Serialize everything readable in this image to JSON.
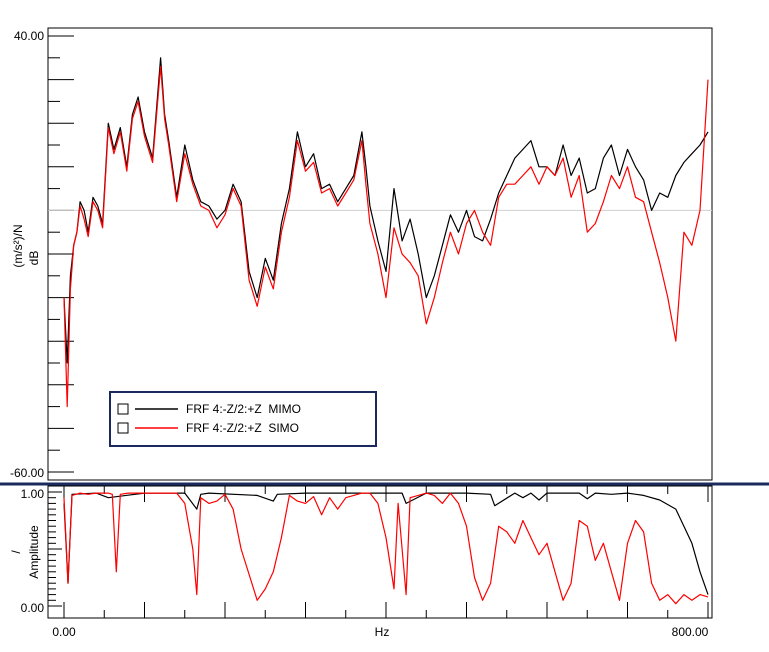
{
  "chart_data": [
    {
      "type": "line",
      "panel": "frf-magnitude",
      "title": "",
      "xlabel": "",
      "ylabel_unit": "(m/s²)/N",
      "ylabel_scale": "dB",
      "xlim": [
        0,
        800
      ],
      "ylim": [
        -60,
        40
      ],
      "y_tick_labels": [
        "40.00",
        "-60.00"
      ],
      "reference_line_y": 0,
      "grid": false,
      "legend_placement": "bottom-left",
      "series": [
        {
          "name": "FRF 4:-Z/2:+Z  MIMO",
          "color": "#000000",
          "x": [
            0,
            4,
            8,
            12,
            16,
            20,
            25,
            30,
            36,
            42,
            48,
            55,
            62,
            70,
            78,
            85,
            92,
            100,
            110,
            120,
            125,
            130,
            140,
            150,
            160,
            170,
            180,
            190,
            200,
            210,
            220,
            230,
            240,
            250,
            260,
            270,
            280,
            290,
            300,
            310,
            320,
            330,
            340,
            350,
            360,
            370,
            375,
            380,
            390,
            400,
            410,
            420,
            430,
            440,
            450,
            460,
            470,
            480,
            490,
            500,
            510,
            520,
            530,
            540,
            550,
            560,
            570,
            580,
            590,
            600,
            610,
            620,
            630,
            640,
            650,
            660,
            670,
            680,
            690,
            700,
            710,
            720,
            730,
            740,
            750,
            760,
            770,
            780,
            790,
            800
          ],
          "y": [
            -20,
            -35,
            -15,
            -8,
            -5,
            2,
            0,
            -5,
            3,
            1,
            -3,
            20,
            14,
            19,
            10,
            22,
            26,
            18,
            12,
            35,
            22,
            16,
            3,
            15,
            7,
            2,
            1,
            -2,
            0,
            6,
            2,
            -14,
            -20,
            -11,
            -16,
            -3,
            5,
            18,
            10,
            13,
            5,
            6,
            2,
            5,
            8,
            18,
            10,
            1,
            -7,
            -14,
            5,
            -7,
            -2,
            -10,
            -20,
            -15,
            -8,
            -1,
            -5,
            0,
            -6,
            -7,
            -2,
            4,
            8,
            12,
            14,
            16,
            10,
            10,
            8,
            15,
            8,
            12,
            4,
            5,
            12,
            15,
            8,
            14,
            10,
            7,
            0,
            4,
            3,
            8,
            11,
            13,
            15,
            18
          ]
        },
        {
          "name": "FRF 4:-Z/2:+Z  SIMO",
          "color": "#ff0000",
          "x": [
            0,
            4,
            8,
            12,
            16,
            20,
            25,
            30,
            36,
            42,
            48,
            55,
            62,
            70,
            78,
            85,
            92,
            100,
            110,
            120,
            125,
            130,
            140,
            150,
            160,
            170,
            180,
            190,
            200,
            210,
            220,
            230,
            240,
            250,
            260,
            270,
            280,
            290,
            300,
            310,
            320,
            330,
            340,
            350,
            360,
            370,
            375,
            380,
            390,
            400,
            410,
            420,
            430,
            440,
            450,
            460,
            470,
            480,
            490,
            500,
            510,
            520,
            530,
            540,
            550,
            560,
            570,
            580,
            590,
            600,
            610,
            620,
            630,
            640,
            650,
            660,
            670,
            680,
            690,
            700,
            710,
            720,
            730,
            740,
            750,
            760,
            770,
            780,
            790,
            800
          ],
          "y": [
            -20,
            -45,
            -18,
            -8,
            -5,
            1,
            -2,
            -6,
            2,
            0,
            -4,
            19,
            13,
            18,
            9,
            21,
            25,
            17,
            11,
            33,
            21,
            15,
            2,
            13,
            6,
            1,
            0,
            -4,
            -1,
            5,
            1,
            -16,
            -22,
            -13,
            -18,
            -5,
            3,
            16,
            9,
            11,
            4,
            5,
            1,
            4,
            7,
            16,
            6,
            -3,
            -10,
            -20,
            -4,
            -10,
            -12,
            -15,
            -26,
            -20,
            -12,
            -5,
            -10,
            -3,
            0,
            -5,
            -8,
            3,
            6,
            6,
            8,
            10,
            6,
            10,
            8,
            12,
            3,
            8,
            -5,
            -3,
            2,
            8,
            5,
            10,
            3,
            2,
            -5,
            -12,
            -20,
            -30,
            -5,
            -8,
            0,
            30
          ]
        }
      ]
    },
    {
      "type": "line",
      "panel": "coherence",
      "title": "",
      "xlabel": "Hz",
      "ylabel_unit": "/",
      "ylabel_scale": "Amplitude",
      "xlim": [
        0,
        800
      ],
      "ylim": [
        0,
        1
      ],
      "x_tick_labels": [
        "0.00",
        "800.00"
      ],
      "y_tick_labels": [
        "1.00",
        "0.00"
      ],
      "grid": false,
      "series": [
        {
          "name": "",
          "color": "#000000",
          "x": [
            0,
            5,
            10,
            40,
            55,
            100,
            150,
            165,
            170,
            180,
            240,
            260,
            265,
            300,
            350,
            400,
            420,
            425,
            450,
            500,
            530,
            535,
            560,
            570,
            580,
            590,
            600,
            640,
            650,
            660,
            680,
            700,
            720,
            740,
            760,
            770,
            780,
            790,
            800
          ],
          "y": [
            0.9,
            0.2,
            0.98,
            0.99,
            0.95,
            0.99,
            0.99,
            0.85,
            0.98,
            0.99,
            0.97,
            0.92,
            0.98,
            0.99,
            0.99,
            0.99,
            0.99,
            0.9,
            0.99,
            0.99,
            0.98,
            0.88,
            0.99,
            0.95,
            0.99,
            0.93,
            0.99,
            0.99,
            0.94,
            0.99,
            0.98,
            0.99,
            0.97,
            0.93,
            0.85,
            0.7,
            0.55,
            0.3,
            0.1
          ]
        },
        {
          "name": "",
          "color": "#ff0000",
          "x": [
            0,
            5,
            10,
            20,
            30,
            40,
            55,
            60,
            65,
            70,
            80,
            90,
            100,
            110,
            120,
            130,
            140,
            150,
            160,
            165,
            170,
            180,
            190,
            200,
            210,
            220,
            240,
            250,
            260,
            270,
            280,
            290,
            300,
            310,
            320,
            330,
            340,
            350,
            360,
            370,
            380,
            390,
            400,
            410,
            415,
            420,
            425,
            430,
            440,
            450,
            460,
            470,
            480,
            490,
            500,
            510,
            520,
            530,
            540,
            550,
            560,
            570,
            580,
            590,
            600,
            610,
            620,
            630,
            640,
            650,
            660,
            670,
            680,
            690,
            700,
            710,
            720,
            730,
            740,
            750,
            760,
            770,
            780,
            790,
            800
          ],
          "y": [
            0.95,
            0.2,
            0.97,
            0.99,
            0.98,
            0.99,
            0.99,
            0.98,
            0.3,
            0.98,
            0.99,
            0.99,
            0.99,
            0.99,
            0.99,
            0.99,
            0.99,
            0.9,
            0.5,
            0.1,
            0.95,
            0.9,
            0.92,
            0.98,
            0.85,
            0.5,
            0.05,
            0.15,
            0.3,
            0.6,
            0.97,
            0.92,
            0.9,
            0.96,
            0.8,
            0.95,
            0.85,
            0.95,
            0.97,
            0.99,
            0.99,
            0.9,
            0.6,
            0.15,
            0.9,
            0.5,
            0.1,
            0.95,
            0.97,
            0.99,
            0.97,
            0.9,
            0.99,
            0.9,
            0.7,
            0.25,
            0.05,
            0.2,
            0.7,
            0.65,
            0.55,
            0.75,
            0.6,
            0.45,
            0.55,
            0.3,
            0.05,
            0.2,
            0.75,
            0.7,
            0.4,
            0.55,
            0.3,
            0.05,
            0.55,
            0.75,
            0.65,
            0.2,
            0.05,
            0.1,
            0.02,
            0.1,
            0.05,
            0.1,
            0.08
          ]
        }
      ]
    }
  ]
}
